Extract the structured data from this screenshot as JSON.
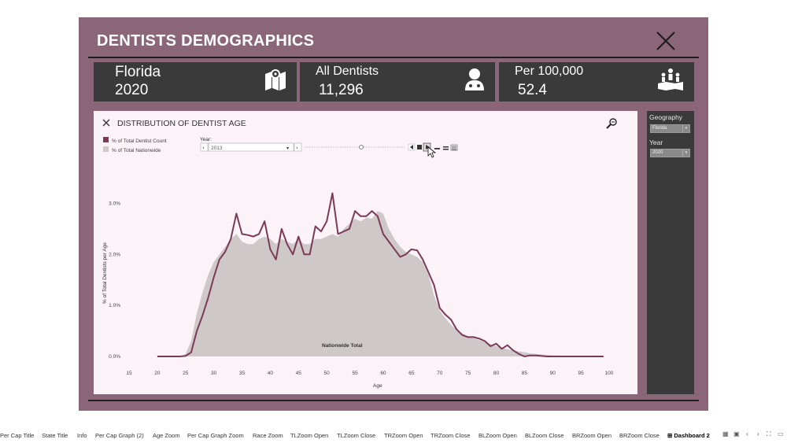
{
  "dashboard": {
    "title": "DENTISTS DEMOGRAPHICS"
  },
  "kpis": {
    "state": {
      "name": "Florida",
      "year": "2020",
      "icon": "map-icon"
    },
    "dentists": {
      "label": "All Dentists",
      "value": "11,296",
      "icon": "dentist-icon"
    },
    "per_capita": {
      "label": "Per 100,000",
      "value": "52.4",
      "icon": "population-map-icon"
    }
  },
  "panel": {
    "title": "DISTRIBUTION OF DENTIST AGE",
    "legend": [
      "% of Total Dentist Count",
      "% of Total Nationwide"
    ],
    "year_label": "Year:",
    "year_value": "2013",
    "annotation": "Nationwide Total"
  },
  "filters": {
    "geography_label": "Geography",
    "geography_value": "Florida",
    "year_label": "Year",
    "year_value": "2020"
  },
  "colors": {
    "frame": "#8b6678",
    "kpi_bg": "#3a3a3a",
    "state_line": "#7b3a57",
    "nationwide_area": "#cfc8c8",
    "panel_bg": "#fbf3f8"
  },
  "chart_data": {
    "type": "line",
    "xlabel": "Age",
    "ylabel": "% of Total Dentists per Age",
    "xlim": [
      15,
      100
    ],
    "ylim": [
      0,
      3.3
    ],
    "x_ticks": [
      "15",
      "20",
      "25",
      "30",
      "35",
      "40",
      "45",
      "50",
      "55",
      "60",
      "65",
      "70",
      "75",
      "80",
      "85",
      "90",
      "95",
      "100"
    ],
    "y_ticks": [
      {
        "label": "0.0%",
        "value": 0
      },
      {
        "label": "1.0%",
        "value": 1
      },
      {
        "label": "2.0%",
        "value": 2
      },
      {
        "label": "3.0%",
        "value": 3
      }
    ],
    "series": [
      {
        "name": "% of Total Dentist Count",
        "type": "line",
        "x": [
          20,
          21,
          22,
          23,
          24,
          25,
          26,
          27,
          28,
          29,
          30,
          31,
          32,
          33,
          34,
          35,
          36,
          37,
          38,
          39,
          40,
          41,
          42,
          43,
          44,
          45,
          46,
          47,
          48,
          49,
          50,
          51,
          52,
          53,
          54,
          55,
          56,
          57,
          58,
          59,
          60,
          61,
          62,
          63,
          64,
          65,
          66,
          67,
          68,
          69,
          70,
          71,
          72,
          73,
          74,
          75,
          76,
          77,
          78,
          79,
          80,
          81,
          82,
          83,
          84,
          85,
          86,
          87,
          88,
          89,
          90,
          91,
          92,
          93,
          94,
          95,
          96,
          97,
          98,
          99
        ],
        "values": [
          0.0,
          0.0,
          0.0,
          0.0,
          0.0,
          0.01,
          0.08,
          0.5,
          0.8,
          1.15,
          1.55,
          1.9,
          2.05,
          2.3,
          2.8,
          2.4,
          2.38,
          2.35,
          2.4,
          2.65,
          2.1,
          1.9,
          2.5,
          2.2,
          2.0,
          2.35,
          2.0,
          2.0,
          2.55,
          2.45,
          2.65,
          3.2,
          2.4,
          2.45,
          2.5,
          2.85,
          2.75,
          2.75,
          2.85,
          2.75,
          2.4,
          2.25,
          2.1,
          1.95,
          2.0,
          2.1,
          2.08,
          1.9,
          1.65,
          1.4,
          0.95,
          0.82,
          0.72,
          0.53,
          0.42,
          0.38,
          0.38,
          0.35,
          0.3,
          0.2,
          0.25,
          0.15,
          0.22,
          0.12,
          0.05,
          0.0,
          0.02,
          0.02,
          0.01,
          0.0,
          0.0,
          0.0,
          0.0,
          0.0,
          0.0,
          0.0,
          0.0,
          0.0,
          0.0,
          0.0
        ]
      },
      {
        "name": "% of Total Nationwide",
        "type": "area",
        "x": [
          20,
          21,
          22,
          23,
          24,
          25,
          26,
          27,
          28,
          29,
          30,
          31,
          32,
          33,
          34,
          35,
          36,
          37,
          38,
          39,
          40,
          41,
          42,
          43,
          44,
          45,
          46,
          47,
          48,
          49,
          50,
          51,
          52,
          53,
          54,
          55,
          56,
          57,
          58,
          59,
          60,
          61,
          62,
          63,
          64,
          65,
          66,
          67,
          68,
          69,
          70,
          71,
          72,
          73,
          74,
          75,
          76,
          77,
          78,
          79,
          80,
          81,
          82,
          83,
          84,
          85,
          86,
          87,
          88,
          89,
          90,
          91,
          92,
          93,
          94,
          95,
          96,
          97,
          98,
          99
        ],
        "values": [
          0.0,
          0.0,
          0.0,
          0.0,
          0.0,
          0.05,
          0.3,
          0.85,
          1.25,
          1.6,
          1.85,
          2.0,
          2.15,
          2.3,
          2.4,
          2.25,
          2.2,
          2.2,
          2.3,
          2.35,
          2.3,
          2.2,
          2.3,
          2.25,
          2.2,
          2.3,
          2.2,
          2.2,
          2.3,
          2.3,
          2.35,
          2.4,
          2.35,
          2.5,
          2.6,
          2.7,
          2.65,
          2.72,
          2.7,
          2.85,
          2.8,
          2.5,
          2.3,
          2.15,
          2.05,
          2.0,
          1.95,
          1.85,
          1.6,
          1.2,
          0.9,
          0.75,
          0.62,
          0.52,
          0.45,
          0.4,
          0.36,
          0.32,
          0.28,
          0.24,
          0.2,
          0.17,
          0.14,
          0.12,
          0.1,
          0.08,
          0.06,
          0.05,
          0.04,
          0.03,
          0.02,
          0.02,
          0.01,
          0.01,
          0.0,
          0.0,
          0.0,
          0.0,
          0.0,
          0.0
        ]
      }
    ]
  },
  "tabs": [
    "Per Cap Title",
    "State Title",
    "Info",
    "Per Cap Graph (2)",
    "Age Zoom",
    "Per Cap Graph Zoom",
    "Race Zoom",
    "TLZoom Open",
    "TLZoom Close",
    "TRZoom Open",
    "TRZoom Close",
    "BLZoom Open",
    "BLZoom Close",
    "BRZoom Open",
    "BRZoom Close",
    "Dashboard 2"
  ],
  "active_tab": "Dashboard 2"
}
